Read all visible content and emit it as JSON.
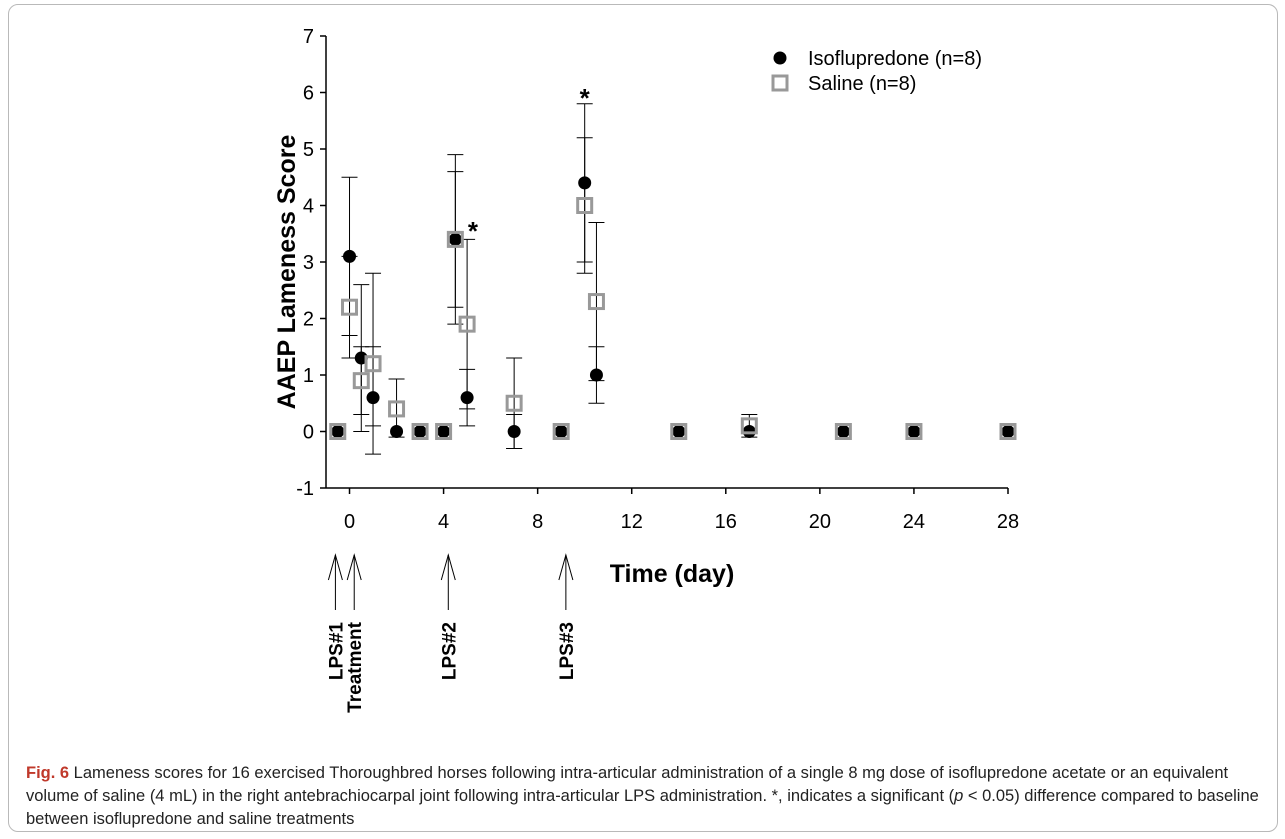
{
  "chart_data": {
    "type": "scatter",
    "title": "",
    "xlabel": "Time (day)",
    "ylabel": "AAEP Lameness Score",
    "xlim": [
      -1,
      28
    ],
    "ylim": [
      -1,
      7
    ],
    "xticks": [
      0,
      4,
      8,
      12,
      16,
      20,
      24,
      28
    ],
    "xtick_labels": [
      "0",
      "4",
      "8",
      "12",
      "16",
      "20",
      "24",
      "28"
    ],
    "yticks": [
      -1,
      0,
      1,
      2,
      3,
      4,
      5,
      6,
      7
    ],
    "ytick_labels": [
      "-1",
      "0",
      "1",
      "2",
      "3",
      "4",
      "5",
      "6",
      "7"
    ],
    "grid": false,
    "legend_position": "top-right",
    "series": [
      {
        "name": "Isoflupredone (n=8)",
        "marker": "filled-circle",
        "color": "#000000",
        "points": [
          {
            "x": -0.5,
            "y": 0
          },
          {
            "x": 0,
            "y": 3.1,
            "err_low": 1.7,
            "err_high": 4.5
          },
          {
            "x": 0.5,
            "y": 1.3,
            "err_low": 0,
            "err_high": 2.6
          },
          {
            "x": 1,
            "y": 0.6,
            "err_low": -0.4,
            "err_high": 1.5
          },
          {
            "x": 2,
            "y": 0
          },
          {
            "x": 3,
            "y": 0
          },
          {
            "x": 4,
            "y": 0
          },
          {
            "x": 4.5,
            "y": 3.4,
            "err_low": 2.2,
            "err_high": 4.6
          },
          {
            "x": 5,
            "y": 0.6,
            "err_low": 0.1,
            "err_high": 1.1
          },
          {
            "x": 7,
            "y": 0,
            "err_low": -0.3,
            "err_high": 0.3
          },
          {
            "x": 9,
            "y": 0
          },
          {
            "x": 10,
            "y": 4.4,
            "err_low": 3.0,
            "err_high": 5.8
          },
          {
            "x": 10.5,
            "y": 1.0,
            "err_low": 0.5,
            "err_high": 1.5
          },
          {
            "x": 14,
            "y": 0
          },
          {
            "x": 17,
            "y": 0
          },
          {
            "x": 21,
            "y": 0
          },
          {
            "x": 24,
            "y": 0
          },
          {
            "x": 28,
            "y": 0
          }
        ]
      },
      {
        "name": "Saline (n=8)",
        "marker": "open-square",
        "color": "#999999",
        "points": [
          {
            "x": -0.5,
            "y": 0
          },
          {
            "x": 0,
            "y": 2.2,
            "err_low": 1.3,
            "err_high": 3.1
          },
          {
            "x": 0.5,
            "y": 0.9,
            "err_low": 0.3,
            "err_high": 1.5
          },
          {
            "x": 1,
            "y": 1.2,
            "err_low": 0.1,
            "err_high": 2.8
          },
          {
            "x": 2,
            "y": 0.4,
            "err_low": -0.1,
            "err_high": 0.93
          },
          {
            "x": 3,
            "y": 0
          },
          {
            "x": 4,
            "y": 0
          },
          {
            "x": 4.5,
            "y": 3.4,
            "err_low": 1.9,
            "err_high": 4.9
          },
          {
            "x": 5,
            "y": 1.9,
            "err_low": 0.4,
            "err_high": 3.4
          },
          {
            "x": 7,
            "y": 0.5,
            "err_low": -0.3,
            "err_high": 1.3
          },
          {
            "x": 9,
            "y": 0
          },
          {
            "x": 10,
            "y": 4.0,
            "err_low": 2.8,
            "err_high": 5.2
          },
          {
            "x": 10.5,
            "y": 2.3,
            "err_low": 0.9,
            "err_high": 3.7
          },
          {
            "x": 14,
            "y": 0
          },
          {
            "x": 17,
            "y": 0.1,
            "err_low": -0.1,
            "err_high": 0.3
          },
          {
            "x": 21,
            "y": 0
          },
          {
            "x": 24,
            "y": 0
          },
          {
            "x": 28,
            "y": 0
          }
        ]
      }
    ],
    "annotations": [
      {
        "text": "*",
        "x": 5.25,
        "y": 3.5
      },
      {
        "text": "*",
        "x": 10,
        "y": 5.85
      }
    ],
    "events": [
      {
        "label": "LPS#1",
        "x": -0.6
      },
      {
        "label": "Treatment",
        "x": 0.2
      },
      {
        "label": "LPS#2",
        "x": 4.2
      },
      {
        "label": "LPS#3",
        "x": 9.2
      }
    ]
  },
  "caption": {
    "label": "Fig. 6",
    "text_1": "  Lameness scores for 16 exercised Thoroughbred horses following intra-articular administration of a single 8 mg dose of isoflupredone acetate or an equivalent volume of saline (4 mL) in the right antebrachiocarpal joint following intra-articular LPS administration. *, indicates a significant (",
    "p_symbol": "p",
    "text_2": " < 0.05) difference compared to baseline between isoflupredone and saline treatments"
  }
}
